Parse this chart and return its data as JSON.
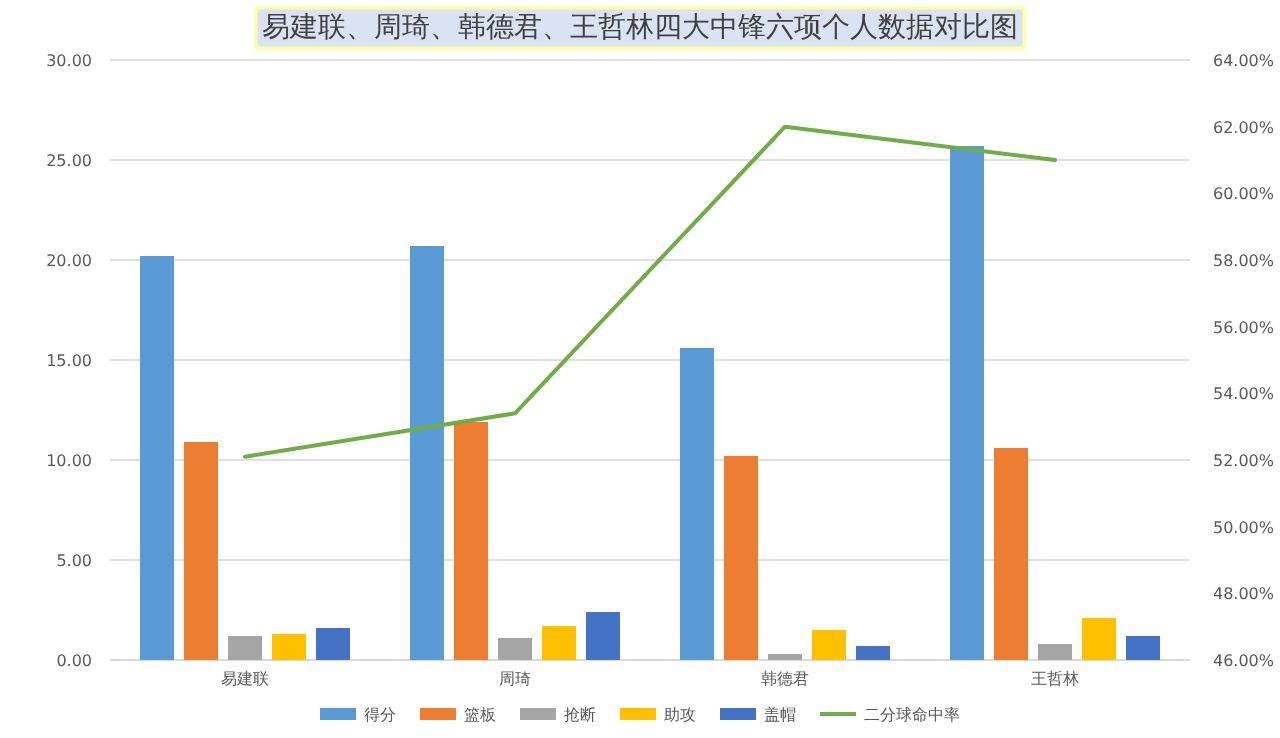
{
  "chart_data": {
    "type": "bar",
    "title": "易建联、周琦、韩德君、王哲林四大中锋六项个人数据对比图",
    "categories": [
      "易建联",
      "周琦",
      "韩德君",
      "王哲林"
    ],
    "series": [
      {
        "name": "得分",
        "color": "#5b9bd5",
        "values": [
          20.2,
          20.7,
          15.6,
          25.7
        ]
      },
      {
        "name": "篮板",
        "color": "#ed7d31",
        "values": [
          10.9,
          11.9,
          10.2,
          10.6
        ]
      },
      {
        "name": "抢断",
        "color": "#a5a5a5",
        "values": [
          1.2,
          1.1,
          0.3,
          0.8
        ]
      },
      {
        "name": "助攻",
        "color": "#ffc000",
        "values": [
          1.3,
          1.7,
          1.5,
          2.1
        ]
      },
      {
        "name": "盖帽",
        "color": "#4472c4",
        "values": [
          1.6,
          2.4,
          0.7,
          1.2
        ]
      },
      {
        "name": "二分球命中率",
        "color": "#70ad47",
        "type": "line",
        "axis": "y2",
        "values": [
          52.1,
          53.4,
          62.0,
          61.0
        ]
      }
    ],
    "ylim": [
      0,
      30
    ],
    "yticks": [
      {
        "value": 0,
        "label": "0.00"
      },
      {
        "value": 5,
        "label": "5.00"
      },
      {
        "value": 10,
        "label": "10.00"
      },
      {
        "value": 15,
        "label": "15.00"
      },
      {
        "value": 20,
        "label": "20.00"
      },
      {
        "value": 25,
        "label": "25.00"
      },
      {
        "value": 30,
        "label": "30.00"
      }
    ],
    "y2lim": [
      46,
      64
    ],
    "y2ticks": [
      {
        "value": 46,
        "label": "46.00%"
      },
      {
        "value": 48,
        "label": "48.00%"
      },
      {
        "value": 50,
        "label": "50.00%"
      },
      {
        "value": 52,
        "label": "52.00%"
      },
      {
        "value": 54,
        "label": "54.00%"
      },
      {
        "value": 56,
        "label": "56.00%"
      },
      {
        "value": 58,
        "label": "58.00%"
      },
      {
        "value": 60,
        "label": "60.00%"
      },
      {
        "value": 62,
        "label": "62.00%"
      },
      {
        "value": 64,
        "label": "64.00%"
      }
    ],
    "grid": "y",
    "legend": "bottom",
    "marker": "none",
    "line_style": "solid"
  }
}
